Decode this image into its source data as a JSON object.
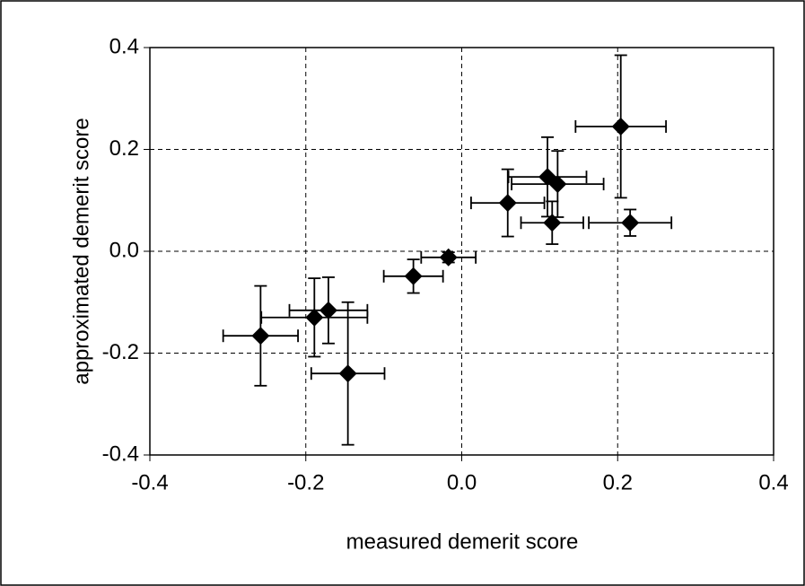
{
  "chart_data": {
    "type": "scatter",
    "xlabel": "measured demerit score",
    "ylabel": "approximated demerit score",
    "xlim": [
      -0.4,
      0.4
    ],
    "ylim": [
      -0.4,
      0.4
    ],
    "xticks": [
      -0.4,
      -0.2,
      {
        "value": 0,
        "label": "0.0"
      },
      0.2,
      0.4
    ],
    "yticks": [
      -0.4,
      -0.2,
      {
        "value": 0,
        "label": "0.0"
      },
      0.2,
      0.4
    ],
    "grid": true,
    "series": [
      {
        "color": "#000000",
        "x": [
          0.204,
          0.11,
          0.123,
          0.059,
          0.116,
          0.216,
          -0.017,
          -0.062,
          -0.189,
          -0.171,
          -0.258,
          -0.146
        ],
        "values": [
          0.245,
          0.146,
          0.132,
          0.095,
          0.056,
          0.056,
          -0.012,
          -0.049,
          -0.13,
          -0.116,
          -0.166,
          -0.24
        ],
        "xerr": [
          0.058,
          0.05,
          0.059,
          0.047,
          0.04,
          0.053,
          0.035,
          0.038,
          0.068,
          0.05,
          0.048,
          0.047
        ],
        "yerr": [
          0.14,
          0.078,
          0.065,
          0.066,
          0.042,
          0.026,
          0.01,
          0.033,
          0.077,
          0.065,
          0.098,
          0.14
        ]
      }
    ]
  }
}
